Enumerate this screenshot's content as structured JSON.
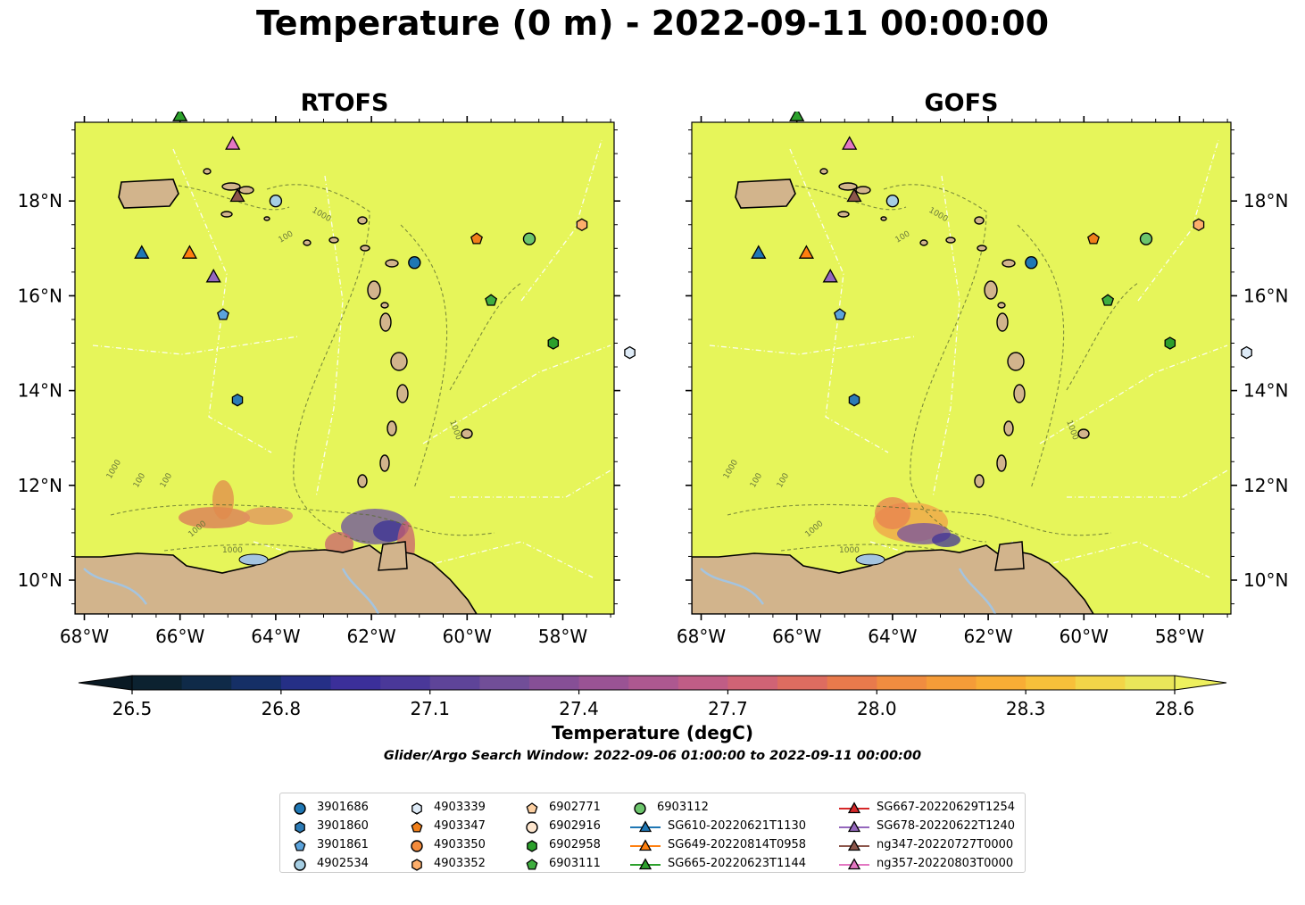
{
  "title": "Temperature (0 m) - 2022-09-11 00:00:00",
  "panels": [
    {
      "title": "RTOFS"
    },
    {
      "title": "GOFS"
    }
  ],
  "axes": {
    "xticks": [
      "68°W",
      "66°W",
      "64°W",
      "62°W",
      "60°W",
      "58°W"
    ],
    "yticks": [
      "18°N",
      "16°N",
      "14°N",
      "12°N",
      "10°N"
    ],
    "xlim": [
      -68.2,
      -56.9
    ],
    "ylim": [
      9.3,
      19.8
    ]
  },
  "contour_labels": [
    "100",
    "1000"
  ],
  "colorbar": {
    "label": "Temperature (degC)",
    "ticks": [
      "26.5",
      "26.8",
      "27.1",
      "27.4",
      "27.7",
      "28.0",
      "28.3",
      "28.6"
    ],
    "colors": [
      "#0c2230",
      "#0f2a48",
      "#152f66",
      "#252f86",
      "#3b2f9a",
      "#4a3899",
      "#5e4499",
      "#714e98",
      "#864f96",
      "#9a5394",
      "#ad5890",
      "#c05d86",
      "#d06375",
      "#dd6c60",
      "#e87a4c",
      "#f08c40",
      "#f59c38",
      "#f8ad35",
      "#f7c03a",
      "#f2d548",
      "#eae65a"
    ],
    "min": 26.5,
    "max": 28.6
  },
  "search_window": "Glider/Argo Search Window: 2022-09-06 01:00:00 to 2022-09-11 00:00:00",
  "chart_data": {
    "type": "map",
    "colors": {
      "ocean": "#e6f55a",
      "land": "#d2b48c",
      "water_body": "#a4c4e0"
    },
    "markers": [
      {
        "id": "3901686",
        "shape": "circle",
        "color": "#1f77b4",
        "lon": -61.1,
        "lat": 16.7
      },
      {
        "id": "3901860",
        "shape": "hexagon",
        "color": "#2c7bb6",
        "lon": -64.8,
        "lat": 13.8
      },
      {
        "id": "3901861",
        "shape": "pentagon",
        "color": "#5ba3dc",
        "lon": -65.1,
        "lat": 15.6
      },
      {
        "id": "4902534",
        "shape": "circle",
        "color": "#a6cee3",
        "lon": -64.0,
        "lat": 18.0
      },
      {
        "id": "4903339",
        "shape": "hexagon",
        "color": "#deebf7",
        "lon": -56.6,
        "lat": 14.8
      },
      {
        "id": "4903347",
        "shape": "pentagon",
        "color": "#f07f1a",
        "lon": -59.8,
        "lat": 17.2
      },
      {
        "id": "4903350",
        "shape": "circle",
        "color": "#f38b3c",
        "lon": null,
        "lat": null
      },
      {
        "id": "4903352",
        "shape": "hexagon",
        "color": "#fdae6b",
        "lon": -57.6,
        "lat": 17.5
      },
      {
        "id": "6902771",
        "shape": "pentagon",
        "color": "#fdd0a2",
        "lon": null,
        "lat": null
      },
      {
        "id": "6902916",
        "shape": "circle",
        "color": "#fee6ce",
        "lon": null,
        "lat": null
      },
      {
        "id": "6902958",
        "shape": "hexagon",
        "color": "#2ca02c",
        "lon": -58.2,
        "lat": 15.0
      },
      {
        "id": "6903111",
        "shape": "pentagon",
        "color": "#3fae3f",
        "lon": -59.5,
        "lat": 15.9
      },
      {
        "id": "6903112",
        "shape": "circle",
        "color": "#6cc56c",
        "lon": -58.7,
        "lat": 17.2
      },
      {
        "id": "SG610-20220621T1130",
        "shape": "triangle",
        "color": "#1f77b4",
        "lon": -66.8,
        "lat": 16.9
      },
      {
        "id": "SG649-20220814T0958",
        "shape": "triangle",
        "color": "#ff7f0e",
        "lon": -65.8,
        "lat": 16.9
      },
      {
        "id": "SG665-20220623T1144",
        "shape": "triangle",
        "color": "#2ca02c",
        "lon": -66.0,
        "lat": 19.8
      },
      {
        "id": "SG667-20220629T1254",
        "shape": "triangle",
        "color": "#d62728",
        "lon": null,
        "lat": null
      },
      {
        "id": "SG678-20220622T1240",
        "shape": "triangle",
        "color": "#9467bd",
        "lon": -65.3,
        "lat": 16.4
      },
      {
        "id": "ng347-20220727T0000",
        "shape": "triangle",
        "color": "#8c564b",
        "lon": -64.8,
        "lat": 18.1
      },
      {
        "id": "ng357-20220803T0000",
        "shape": "triangle",
        "color": "#e377c2",
        "lon": -64.9,
        "lat": 19.2
      }
    ]
  }
}
